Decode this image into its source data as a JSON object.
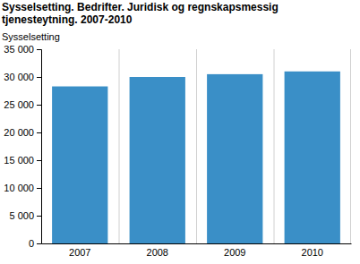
{
  "chart_data": {
    "type": "bar",
    "title": "Sysselsetting. Bedrifter. Juridisk og regnskapsmessig tjenesteytning. 2007-2010",
    "y_label": "Sysselsetting",
    "categories": [
      "2007",
      "2008",
      "2009",
      "2010"
    ],
    "values": [
      28300,
      30000,
      30500,
      31000
    ],
    "color": "#3a8fc7",
    "ylim": [
      0,
      35000
    ],
    "yticks": [
      0,
      {
        "value": 5000,
        "label": "5 000"
      },
      {
        "value": 10000,
        "label": "10 000"
      },
      {
        "value": 15000,
        "label": "15 000"
      },
      {
        "value": 20000,
        "label": "20 000"
      },
      {
        "value": 25000,
        "label": "25 000"
      },
      {
        "value": 30000,
        "label": "30 000"
      },
      {
        "value": 35000,
        "label": "35 000"
      }
    ],
    "grid": true
  }
}
